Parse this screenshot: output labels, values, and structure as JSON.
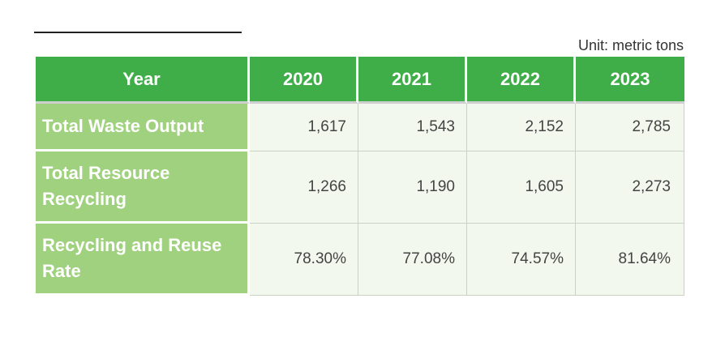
{
  "unit_label": "Unit: metric tons",
  "header": {
    "row_label": "Year",
    "years": [
      "2020",
      "2021",
      "2022",
      "2023"
    ]
  },
  "rows": [
    {
      "label": "Total Waste Output",
      "values": [
        "1,617",
        "1,543",
        "2,152",
        "2,785"
      ]
    },
    {
      "label": "Total Resource Recycling",
      "values": [
        "1,266",
        "1,190",
        "1,605",
        "2,273"
      ]
    },
    {
      "label": "Recycling and Reuse Rate",
      "values": [
        "78.30%",
        "77.08%",
        "74.57%",
        "81.64%"
      ]
    }
  ],
  "colors": {
    "header_green": "#3fae49",
    "row_label_green": "#9fd17e",
    "cell_bg": "#f2f8ee"
  }
}
